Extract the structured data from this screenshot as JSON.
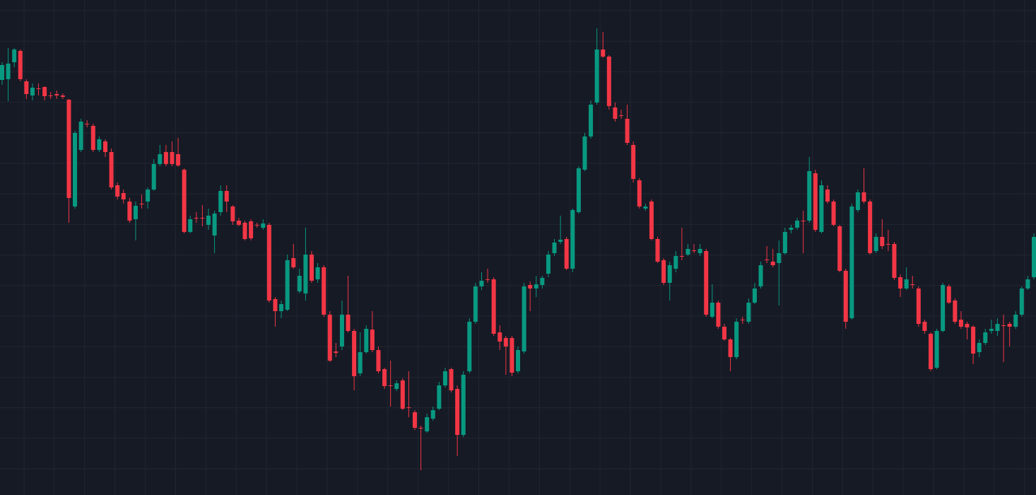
{
  "chart_data": {
    "type": "candlestick",
    "up_color": "#089981",
    "down_color": "#f23645",
    "ylim": [
      0,
      700
    ],
    "open": [
      587,
      588,
      612,
      628,
      585,
      565,
      575,
      577,
      565,
      567,
      565,
      559,
      408,
      488,
      525,
      522,
      488,
      500,
      485,
      438,
      427,
      415,
      390,
      412,
      415,
      432,
      468,
      485,
      485,
      482,
      460,
      372,
      392,
      392,
      382,
      367,
      400,
      430,
      408,
      388,
      385,
      387,
      382,
      378,
      382,
      277,
      260,
      262,
      335,
      288,
      285,
      340,
      305,
      322,
      255,
      203,
      210,
      255,
      232,
      172,
      202,
      234,
      205,
      178,
      155,
      150,
      162,
      124,
      117,
      95,
      90,
      108,
      122,
      155,
      178,
      150,
      85,
      175,
      245,
      295,
      305,
      305,
      230,
      222,
      222,
      175,
      203,
      297,
      292,
      297,
      313,
      342,
      358,
      362,
      320,
      400,
      460,
      507,
      555,
      630,
      620,
      548,
      537,
      532,
      495,
      445,
      405,
      415,
      362,
      332,
      300,
      320,
      338,
      340,
      346,
      342,
      345,
      252,
      272,
      238,
      220,
      195,
      248,
      245,
      272,
      295,
      333,
      330,
      328,
      342,
      375,
      378,
      388,
      388,
      455,
      372,
      432,
      415,
      380,
      317,
      250,
      403,
      428,
      415,
      345,
      365,
      355,
      355,
      308,
      292,
      298,
      292,
      245,
      228,
      180,
      232,
      295,
      275,
      248,
      242,
      238,
      202,
      215,
      232,
      232,
      240,
      242,
      238,
      255,
      292,
      308
    ],
    "high": [
      612,
      632,
      632,
      630,
      588,
      582,
      582,
      578,
      570,
      572,
      568,
      560,
      515,
      532,
      530,
      525,
      507,
      503,
      490,
      442,
      432,
      420,
      415,
      425,
      435,
      475,
      495,
      495,
      500,
      505,
      462,
      395,
      400,
      410,
      405,
      402,
      438,
      438,
      410,
      392,
      388,
      390,
      385,
      390,
      385,
      280,
      275,
      340,
      355,
      320,
      378,
      345,
      328,
      325,
      260,
      215,
      275,
      310,
      235,
      230,
      240,
      260,
      210,
      180,
      190,
      162,
      165,
      175,
      120,
      98,
      115,
      125,
      160,
      180,
      180,
      155,
      175,
      250,
      300,
      315,
      320,
      308,
      240,
      225,
      225,
      210,
      300,
      302,
      310,
      310,
      345,
      362,
      395,
      365,
      405,
      465,
      512,
      558,
      660,
      655,
      622,
      555,
      545,
      552,
      500,
      448,
      412,
      418,
      365,
      335,
      330,
      345,
      378,
      355,
      355,
      355,
      348,
      298,
      275,
      242,
      222,
      250,
      252,
      278,
      300,
      330,
      352,
      348,
      360,
      378,
      382,
      392,
      402,
      478,
      460,
      445,
      438,
      418,
      382,
      320,
      412,
      432,
      462,
      418,
      370,
      390,
      375,
      358,
      312,
      322,
      310,
      295,
      248,
      230,
      235,
      300,
      298,
      278,
      260,
      245,
      240,
      220,
      235,
      248,
      250,
      255,
      245,
      260,
      295,
      310,
      370
    ],
    "low": [
      580,
      557,
      605,
      585,
      560,
      558,
      565,
      558,
      560,
      560,
      560,
      385,
      405,
      485,
      520,
      485,
      485,
      478,
      432,
      418,
      412,
      385,
      360,
      405,
      405,
      430,
      465,
      465,
      465,
      464,
      370,
      370,
      385,
      380,
      375,
      342,
      395,
      400,
      382,
      380,
      360,
      360,
      378,
      375,
      272,
      238,
      250,
      260,
      320,
      285,
      275,
      300,
      300,
      252,
      188,
      195,
      205,
      230,
      148,
      168,
      200,
      202,
      172,
      150,
      125,
      147,
      120,
      110,
      92,
      35,
      88,
      105,
      120,
      152,
      145,
      55,
      82,
      172,
      242,
      290,
      300,
      225,
      205,
      170,
      168,
      172,
      200,
      260,
      280,
      292,
      308,
      338,
      355,
      318,
      315,
      398,
      458,
      504,
      552,
      618,
      545,
      528,
      532,
      495,
      442,
      405,
      402,
      360,
      328,
      297,
      275,
      315,
      332,
      338,
      342,
      338,
      252,
      250,
      235,
      218,
      175,
      192,
      242,
      242,
      270,
      292,
      328,
      322,
      268,
      340,
      370,
      375,
      342,
      385,
      372,
      370,
      412,
      380,
      315,
      235,
      248,
      400,
      412,
      340,
      342,
      348,
      345,
      304,
      280,
      290,
      292,
      238,
      228,
      175,
      178,
      230,
      270,
      242,
      235,
      220,
      185,
      195,
      212,
      228,
      225,
      188,
      210,
      235,
      252,
      290,
      305
    ],
    "close": [
      608,
      610,
      630,
      588,
      567,
      576,
      574,
      564,
      564,
      565,
      563,
      420,
      512,
      528,
      524,
      488,
      503,
      485,
      435,
      422,
      418,
      388,
      409,
      411,
      432,
      468,
      482,
      468,
      468,
      466,
      372,
      390,
      391,
      391,
      395,
      398,
      430,
      415,
      387,
      382,
      362,
      363,
      381,
      384,
      275,
      260,
      270,
      332,
      322,
      310,
      340,
      303,
      322,
      255,
      190,
      201,
      255,
      232,
      168,
      202,
      235,
      205,
      175,
      154,
      154,
      158,
      122,
      123,
      95,
      94,
      110,
      120,
      155,
      175,
      148,
      85,
      170,
      245,
      295,
      303,
      304,
      228,
      217,
      210,
      173,
      205,
      295,
      292,
      298,
      307,
      340,
      357,
      361,
      320,
      403,
      462,
      507,
      552,
      630,
      620,
      550,
      532,
      536,
      498,
      447,
      408,
      408,
      362,
      330,
      300,
      325,
      338,
      337,
      348,
      345,
      348,
      255,
      272,
      238,
      220,
      195,
      245,
      247,
      272,
      292,
      325,
      332,
      325,
      342,
      372,
      378,
      388,
      387,
      458,
      375,
      438,
      415,
      382,
      317,
      245,
      408,
      428,
      415,
      342,
      365,
      352,
      354,
      307,
      292,
      305,
      297,
      242,
      232,
      178,
      232,
      297,
      272,
      245,
      238,
      237,
      200,
      215,
      230,
      235,
      242,
      239,
      238,
      255,
      292,
      305,
      365
    ]
  }
}
